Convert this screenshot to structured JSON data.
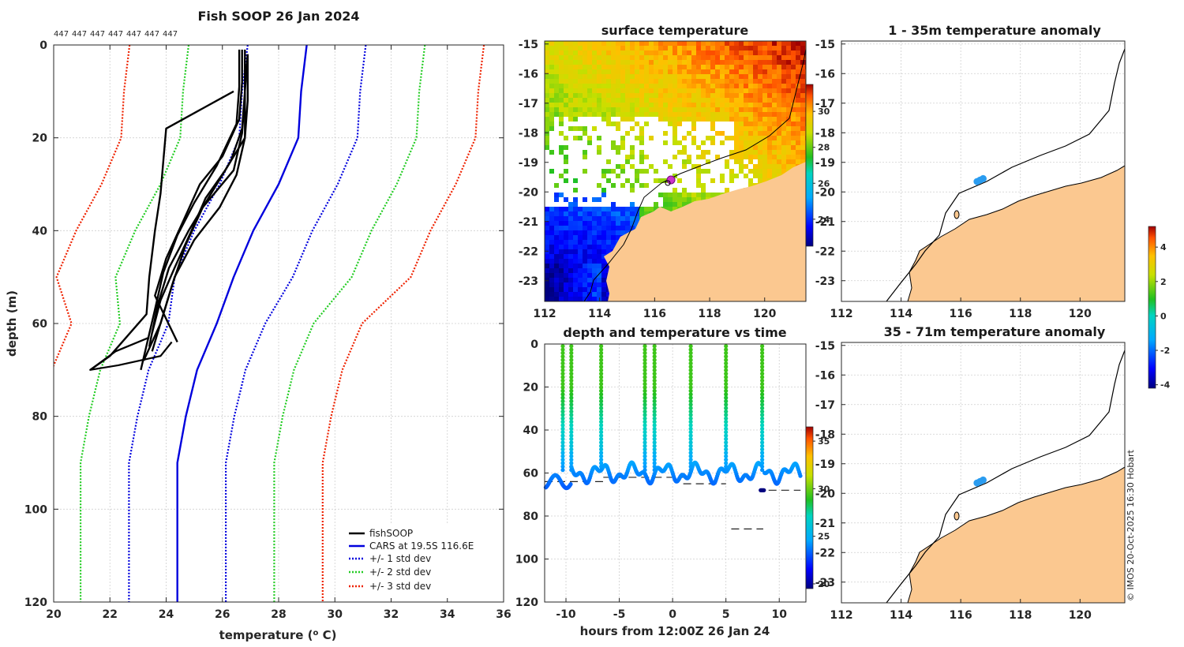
{
  "chart_data": [
    {
      "id": "profile",
      "type": "line",
      "title": "Fish SOOP 26 Jan 2024",
      "xlabel": "temperature (",
      "xlabel_sup": "o",
      "xlabel_end": " C)",
      "ylabel": "depth (m)",
      "xlim": [
        20,
        36
      ],
      "ylim": [
        120,
        0
      ],
      "xticks": [
        20,
        22,
        24,
        26,
        28,
        30,
        32,
        34,
        36
      ],
      "yticks": [
        0,
        20,
        40,
        60,
        80,
        100,
        120
      ],
      "top_labels": [
        "447",
        "447",
        "447",
        "447",
        "447",
        "447",
        "447"
      ],
      "legend": [
        "fishSOOP",
        "CARS at 19.5S 116.6E",
        "+/- 1 std dev",
        "+/- 2 std dev",
        "+/- 3 std dev"
      ],
      "colors": {
        "fish": "#000000",
        "cars": "#0000dd",
        "sd1": "#0000dd",
        "sd2": "#22cc22",
        "sd3": "#ee2200"
      },
      "cars": {
        "depth": [
          0,
          10,
          20,
          30,
          40,
          50,
          60,
          70,
          80,
          90,
          120
        ],
        "temp": [
          29.0,
          28.8,
          28.7,
          28.0,
          27.1,
          26.4,
          25.8,
          25.1,
          24.7,
          24.4,
          24.4
        ]
      },
      "sd_offsets": [
        2.1,
        4.2,
        6.3
      ],
      "fish_profiles": [
        {
          "depth": [
            1,
            10,
            20,
            27,
            33,
            40,
            48,
            55,
            62
          ],
          "temp": [
            26.8,
            26.8,
            26.8,
            26.1,
            25.4,
            24.9,
            24.3,
            23.8,
            23.5
          ]
        },
        {
          "depth": [
            2,
            10,
            18,
            25,
            32,
            40,
            48,
            56,
            65
          ],
          "temp": [
            26.9,
            26.8,
            26.7,
            26.3,
            25.6,
            24.8,
            24.1,
            23.7,
            23.4
          ]
        },
        {
          "depth": [
            1,
            8,
            16,
            24,
            30,
            38,
            46,
            54,
            64
          ],
          "temp": [
            26.7,
            26.7,
            26.6,
            26.0,
            25.2,
            24.6,
            24.0,
            23.6,
            24.4
          ]
        },
        {
          "depth": [
            2,
            12,
            20,
            28,
            35,
            42,
            50,
            58,
            66
          ],
          "temp": [
            26.9,
            26.9,
            26.8,
            26.5,
            25.9,
            25.0,
            24.3,
            23.9,
            23.5
          ]
        },
        {
          "depth": [
            1,
            9,
            17,
            26,
            34,
            41,
            49,
            57,
            70
          ],
          "temp": [
            26.6,
            26.6,
            26.5,
            25.8,
            25.0,
            24.4,
            23.9,
            23.6,
            23.1
          ]
        },
        {
          "depth": [
            3,
            11,
            19,
            27,
            35,
            43,
            52,
            60,
            68
          ],
          "temp": [
            26.8,
            26.8,
            26.7,
            26.4,
            25.3,
            24.7,
            24.2,
            23.8,
            23.2
          ]
        },
        {
          "depth": [
            10,
            18,
            25,
            32,
            40,
            50,
            58,
            67,
            70
          ],
          "temp": [
            26.4,
            24.0,
            23.9,
            23.8,
            23.6,
            23.4,
            23.3,
            22.0,
            21.3
          ]
        }
      ]
    },
    {
      "id": "surface",
      "type": "heatmap",
      "title": "surface temperature",
      "xlim": [
        112,
        121.5
      ],
      "ylim": [
        -23.7,
        -14.9
      ],
      "xticks": [
        112,
        114,
        116,
        118,
        120
      ],
      "yticks": [
        -15,
        -16,
        -17,
        -18,
        -19,
        -20,
        -21,
        -22,
        -23
      ],
      "colorbar_ticks": [
        24,
        26,
        28,
        30
      ],
      "colorbar_range": [
        22.5,
        31.5
      ],
      "marker": {
        "lon": 116.6,
        "lat": -19.5
      }
    },
    {
      "id": "timeseries",
      "type": "scatter",
      "title": "depth and temperature vs time",
      "xlabel": "hours from 12:00Z 26 Jan 24",
      "xlim": [
        -12,
        12.5
      ],
      "ylim": [
        120,
        0
      ],
      "xticks": [
        -10,
        -5,
        0,
        5,
        10
      ],
      "yticks": [
        0,
        20,
        40,
        60,
        80,
        100,
        120
      ],
      "colorbar_ticks": [
        20,
        25,
        30,
        35
      ],
      "colorbar_range": [
        19.5,
        36.5
      ],
      "surfacing_hours": [
        -10.3,
        -9.5,
        -6.7,
        -2.6,
        -1.7,
        1.7,
        5.0,
        8.4
      ],
      "bottom_dashes": [
        {
          "x": [
            -12,
            -6.5
          ],
          "depth": 64
        },
        {
          "x": [
            -6.5,
            1.0
          ],
          "depth": 62
        },
        {
          "x": [
            1.0,
            5.0
          ],
          "depth": 65
        },
        {
          "x": [
            5.5,
            8.5
          ],
          "depth": 86
        },
        {
          "x": [
            9.0,
            12.0
          ],
          "depth": 68
        }
      ]
    },
    {
      "id": "anom1",
      "type": "scatter",
      "title": "1 - 35m temperature anomaly",
      "xlim": [
        112,
        121.5
      ],
      "ylim": [
        -23.7,
        -14.9
      ],
      "xticks": [
        112,
        114,
        116,
        118,
        120
      ],
      "yticks": [
        -15,
        -16,
        -17,
        -18,
        -19,
        -20,
        -21,
        -22,
        -23
      ],
      "points": [
        {
          "lon": 116.55,
          "lat": -19.65
        },
        {
          "lon": 116.65,
          "lat": -19.6
        },
        {
          "lon": 116.75,
          "lat": -19.55
        }
      ]
    },
    {
      "id": "anom2",
      "type": "scatter",
      "title": "35 - 71m temperature anomaly",
      "xlim": [
        112,
        121.5
      ],
      "ylim": [
        -23.7,
        -14.9
      ],
      "xticks": [
        112,
        114,
        116,
        118,
        120
      ],
      "yticks": [
        -15,
        -16,
        -17,
        -18,
        -19,
        -20,
        -21,
        -22,
        -23
      ],
      "points": [
        {
          "lon": 116.55,
          "lat": -19.65
        },
        {
          "lon": 116.65,
          "lat": -19.6
        },
        {
          "lon": 116.75,
          "lat": -19.55
        }
      ],
      "colorbar_ticks": [
        -4,
        -2,
        0,
        2,
        4
      ],
      "colorbar_range": [
        -4.2,
        5.2
      ]
    }
  ],
  "copyright": "© IMOS 20-Oct-2025 16:30 Hobart",
  "colors": {
    "land": "#fbc890",
    "grid": "#c8c8c8",
    "axis": "#262626"
  }
}
